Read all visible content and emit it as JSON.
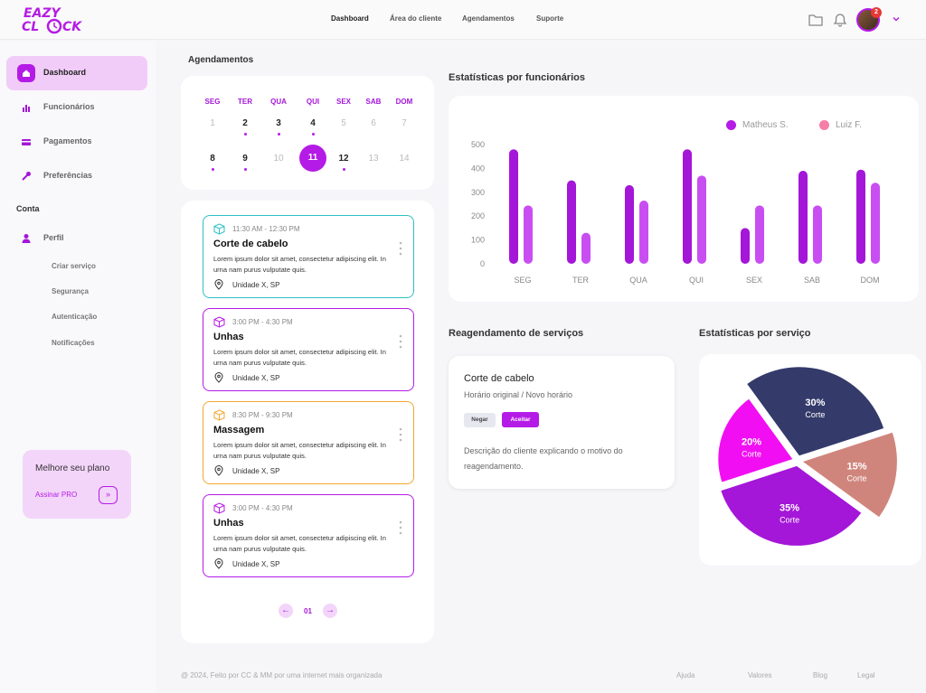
{
  "brand": {
    "line1": "EAZY",
    "line2": "CL OCK"
  },
  "nav": [
    "Dashboard",
    "Área do cliente",
    "Agendamentos",
    "Suporte"
  ],
  "notifications": {
    "count": "2"
  },
  "sidebar": {
    "items": [
      {
        "label": "Dashboard",
        "icon": "home-icon",
        "active": true
      },
      {
        "label": "Funcionários",
        "icon": "bar-chart-icon"
      },
      {
        "label": "Pagamentos",
        "icon": "card-icon"
      },
      {
        "label": "Preferências",
        "icon": "wrench-icon"
      }
    ],
    "section": "Conta",
    "profile": {
      "label": "Perfil",
      "icon": "user-icon"
    },
    "sub_items": [
      "Criar serviço",
      "Segurança",
      "Autenticação",
      "Notificações"
    ],
    "plan": {
      "title": "Melhore seu plano",
      "link": "Assinar PRO",
      "button": "»"
    }
  },
  "schedule": {
    "title": "Agendamentos",
    "weekdays": [
      "SEG",
      "TER",
      "QUA",
      "QUI",
      "SEX",
      "SAB",
      "DOM"
    ],
    "week1": [
      {
        "day": "1",
        "muted": true,
        "dot": false
      },
      {
        "day": "2",
        "muted": false,
        "dot": true
      },
      {
        "day": "3",
        "muted": false,
        "dot": true
      },
      {
        "day": "4",
        "muted": false,
        "dot": true
      },
      {
        "day": "5",
        "muted": true,
        "dot": false
      },
      {
        "day": "6",
        "muted": true,
        "dot": false
      },
      {
        "day": "7",
        "muted": true,
        "dot": false
      }
    ],
    "week2": [
      {
        "day": "8",
        "muted": false,
        "dot": true
      },
      {
        "day": "9",
        "muted": false,
        "dot": true
      },
      {
        "day": "10",
        "muted": true,
        "dot": false
      },
      {
        "day": "11",
        "muted": false,
        "dot": false,
        "selected": true
      },
      {
        "day": "12",
        "muted": false,
        "dot": true
      },
      {
        "day": "13",
        "muted": true,
        "dot": false
      },
      {
        "day": "14",
        "muted": true,
        "dot": false
      }
    ],
    "appointments": [
      {
        "time": "11:30 AM - 12:30 PM",
        "title": "Corte de cabelo",
        "desc": "Lorem ipsum dolor sit amet, consectetur adipiscing elit. In urna nam purus vulputate quis.",
        "location": "Unidade X, SP",
        "color": "#2fbfc4"
      },
      {
        "time": "3:00 PM - 4:30 PM",
        "title": "Unhas",
        "desc": "Lorem ipsum dolor sit amet, consectetur adipiscing elit. In urna nam purus vulputate quis.",
        "location": "Unidade X, SP",
        "color": "#b51be6"
      },
      {
        "time": "8:30 PM - 9:30 PM",
        "title": "Massagem",
        "desc": "Lorem ipsum dolor sit amet, consectetur adipiscing elit. In urna nam purus vulputate quis.",
        "location": "Unidade X, SP",
        "color": "#f0a830"
      },
      {
        "time": "3:00 PM - 4:30 PM",
        "title": "Unhas",
        "desc": "Lorem ipsum dolor sit amet, consectetur adipiscing elit. In urna nam purus vulputate quis.",
        "location": "Unidade X, SP",
        "color": "#b51be6"
      }
    ],
    "page": "01"
  },
  "employee_stats": {
    "title": "Estatísticas por funcionários",
    "chart_data": {
      "type": "bar",
      "categories": [
        "SEG",
        "TER",
        "QUA",
        "QUI",
        "SEX",
        "SAB",
        "DOM"
      ],
      "series": [
        {
          "name": "Matheus S.",
          "color": "#a416d8",
          "values": [
            480,
            350,
            330,
            480,
            150,
            390,
            395
          ]
        },
        {
          "name": "Luiz F.",
          "color": "#c94ef2",
          "values": [
            245,
            130,
            265,
            370,
            245,
            245,
            340
          ]
        }
      ],
      "ylim": [
        0,
        500
      ],
      "yticks": [
        "0",
        "100",
        "200",
        "300",
        "400",
        "500"
      ],
      "legend_colors": [
        "#b51be6",
        "#f57fa7"
      ],
      "grid": false,
      "legend": "top-right"
    }
  },
  "reschedule": {
    "title": "Reagendamento de serviços",
    "service": "Corte de cabelo",
    "subtitle": "Horário original / Novo horário",
    "deny": "Negar",
    "accept": "Aceitar",
    "description": "Descrição do cliente explicando o motivo do reagendamento."
  },
  "service_stats": {
    "title": "Estatísticas por serviço",
    "chart_data": {
      "type": "pie",
      "slices": [
        {
          "label": "Corte",
          "value": 30,
          "text": "30%",
          "color": "#343a6a"
        },
        {
          "label": "Corte",
          "value": 15,
          "text": "15%",
          "color": "#d0857c"
        },
        {
          "label": "Corte",
          "value": 35,
          "text": "35%",
          "color": "#a416d8"
        },
        {
          "label": "Corte",
          "value": 20,
          "text": "20%",
          "color": "#f20ef2"
        }
      ]
    }
  },
  "footer": {
    "copyright": "@ 2024, Feito por CC & MM por uma internet mais organizada",
    "links": [
      "Ajuda",
      "Valores",
      "Blog",
      "Legal"
    ]
  }
}
